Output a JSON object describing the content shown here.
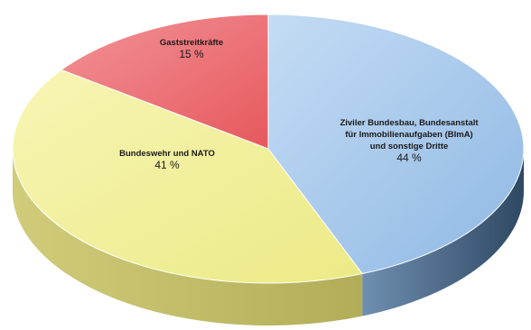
{
  "chart_data": {
    "type": "pie",
    "style": "3d",
    "title": "",
    "slices": [
      {
        "name_lines": [
          "Ziviler Bundesbau, Bundesanstalt",
          "für Immobilienaufgaben (BImA)",
          "und sonstige  Dritte"
        ],
        "percent_label": "44 %",
        "value": 44,
        "color": "#a8ccef",
        "side_color": "#3e5a78"
      },
      {
        "name_lines": [
          "Bundeswehr und NATO"
        ],
        "percent_label": "41 %",
        "value": 41,
        "color": "#f2f096",
        "side_color": "#b8b35a"
      },
      {
        "name_lines": [
          "Gaststreitkräfte"
        ],
        "percent_label": "15 %",
        "value": 15,
        "color": "#ec6f72",
        "side_color": "#a84448"
      }
    ],
    "legend": "none",
    "grid": false
  }
}
